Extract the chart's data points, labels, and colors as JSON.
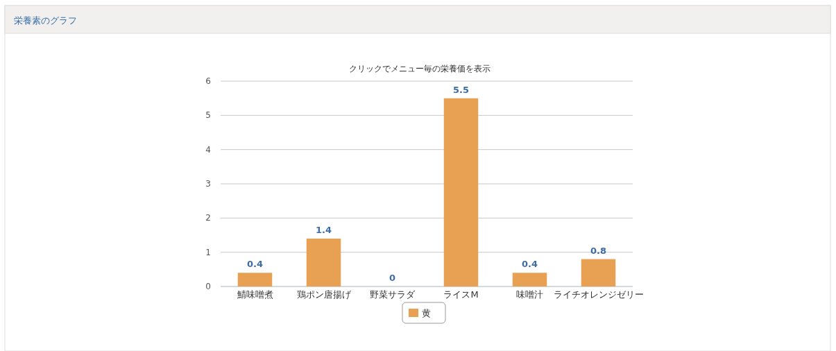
{
  "chart_data": {
    "type": "bar",
    "title": "栄養素のグラフ",
    "subtitle": "クリックでメニュー毎の栄養価を表示",
    "categories": [
      "鯖味噌煮",
      "鶏ポン唐揚げ",
      "野菜サラダ",
      "ライスM",
      "味噌汁",
      "ライチオレンジゼリー"
    ],
    "series": [
      {
        "name": "黄",
        "color": "#e8a152",
        "values": [
          0.4,
          1.4,
          0,
          5.5,
          0.4,
          0.8
        ]
      }
    ],
    "ylim": [
      0,
      6
    ],
    "yticks": [
      0,
      1,
      2,
      3,
      4,
      5,
      6
    ],
    "grid": "y",
    "legend": "bottom",
    "data_labels": true
  }
}
